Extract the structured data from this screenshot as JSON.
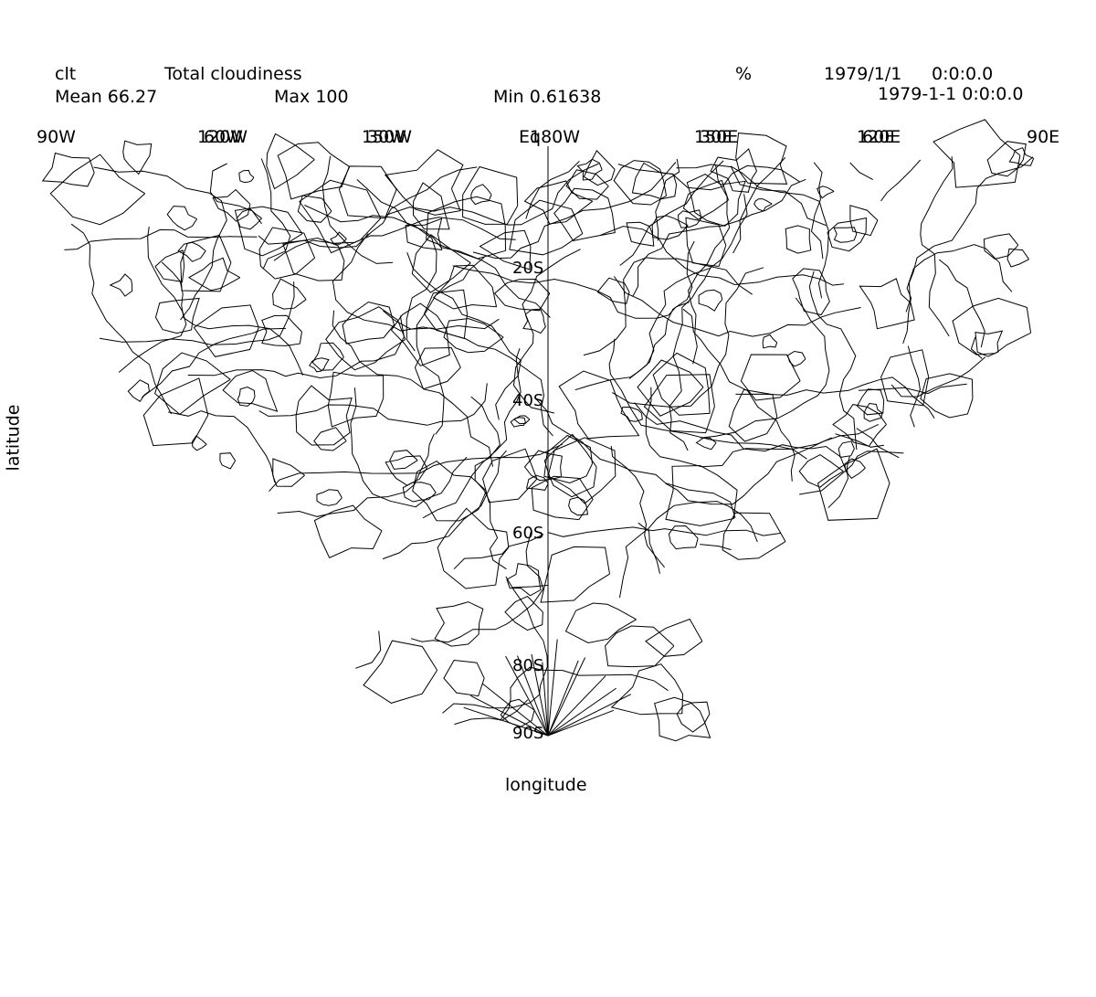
{
  "header": {
    "var_name": "clt",
    "long_name": "Total cloudiness",
    "units": "%",
    "date": "1979/1/1",
    "time": "0:0:0.0",
    "mean_label": "Mean 66.27",
    "max_label": "Max 100",
    "min_label": "Min 0.61638",
    "datetime": "1979-1-1 0:0:0.0"
  },
  "axes": {
    "xlabel": "longitude",
    "ylabel": "latitude",
    "lon_ticks": [
      "90W",
      "120W",
      "150W",
      "180W",
      "150E",
      "120E",
      "90E"
    ],
    "lon_ticks_overprint": [
      "60W",
      "30W",
      "Eq",
      "30E",
      "60E"
    ],
    "lat_ticks": [
      "20S",
      "40S",
      "60S",
      "80S",
      "90S"
    ]
  },
  "map": {
    "projection": "polar",
    "hemisphere": "south",
    "line_color": "#000000",
    "background": "#ffffff"
  }
}
